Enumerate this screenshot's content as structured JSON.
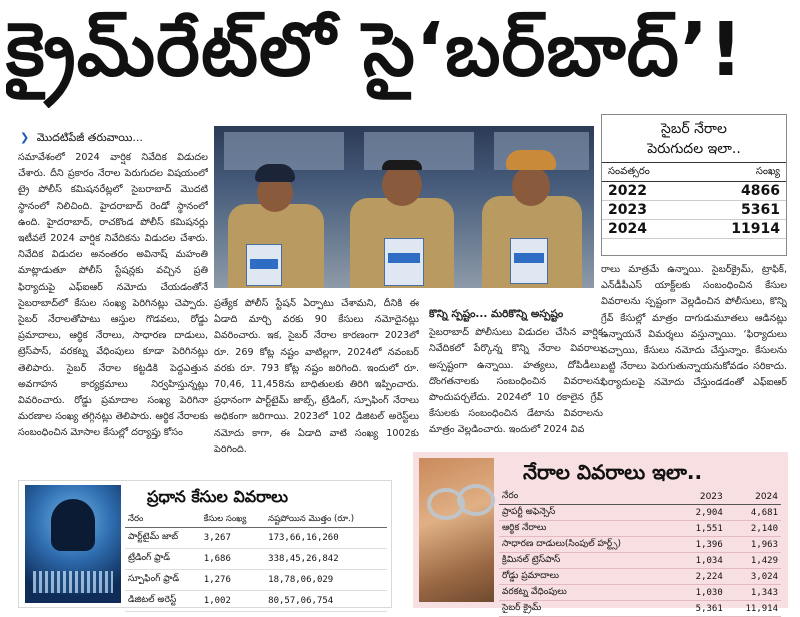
{
  "headline": "క్రైమ్‌రేట్‌లో సై‘బర్‌బాద్‌’!",
  "kicker": "మొదటిపేజీ తరువాయి...",
  "column1": "సమావేశంలో 2024 వార్షిక నివేదిక విడుదల చేశారు. దీని ప్రకారం నేరాల పెరుగుదల విషయంలో ట్రై పోలీస్ కమిషనరేట్లలో సైబరాబాద్ మొదటి స్థానంలో నిలిచింది. హైదరాబాద్ రెండో స్థానంలో ఉంది. హైదరాబాద్, రాచకొండ పోలీస్ కమిషనర్లు ఇటీవలే 2024 వార్షిక నివేదికను విడుదల చేశారు. నివేదిక విడుదల అనంతరం అవినాష్ మహంతి మాట్లాడుతూ పోలీస్ స్టేషన్లకు వచ్చిన ప్రతి ఫిర్యాదుపై ఎఫ్ఐఆర్ నమోదు చేయడంతోనే సైబరాబాద్‌లో కేసుల సంఖ్య పెరిగినట్లు చెప్పారు. సైబర్ నేరాలతోపాటు ఆస్తుల గొడవలు, రోడ్డు ప్రమాదాలు, ఆర్థిక నేరాలు, సాధారణ దాడులు, ట్రెస్‌పాస్, వరకట్న వేధింపులు కూడా పెరిగినట్లు తెలిపారు. సైబర్ నేరాల కట్టడికి పెద్దఎత్తున అవగాహన కార్యక్రమాలు నిర్వహిస్తున్నట్లు వివరించారు. రోడ్డు ప్రమాదాల సంఖ్య పెరిగినా మరణాల సంఖ్య తగ్గినట్లు తెలిపారు. ఆర్థిక నేరాలకు సంబంధించిన మోసాల కేసుల్లో దర్యాప్తు కోసం",
  "column2": "ప్రత్యేక పోలీస్ స్టేషన్ ఏర్పాటు చేశామని, దీనికి ఈ ఏడాది మార్చి వరకు 90 కేసులు నమోదైనట్లు వివరించారు. ఇక, సైబర్ నేరాల కారణంగా 2023లో రూ. 269 కోట్ల నష్టం వాటిల్లగా, 2024లో నవంబర్ వరకు రూ. 793 కోట్ల నష్టం జరిగింది. ఇందులో రూ. 70,46, 11,458ను బాధితులకు తిరిగి ఇప్పించారు. ప్రధానంగా పార్ట్‌టైమ్ జాబ్స్, ట్రేడింగ్, స్పూఫింగ్ నేరాలు అధికంగా జరిగాయి. 2023లో 102 డిజిటల్ అరెస్ట్‌లు నమోదు కాగా, ఈ ఏడాది వాటి సంఖ్య 1002కు పెరిగింది.",
  "column3": {
    "subhead": "కొన్ని స్పష్టం... మరికొన్ని అస్పష్టం",
    "text": "సైబరాబాద్ పోలీసులు విడుదల చేసిన వార్షిక నివేదికలో పేర్కొన్న కొన్ని నేరాల వివరాలు అస్పష్టంగా ఉన్నాయి. హత్యలు, దోపిడీలు, దొంగతనాలకు సంబంధించిన వివరాలను పొందుపర్చలేదు. 2024లో 10 రకాలైన గ్రేవ్ కేసులకు సంబంధించిన డేటాను వివరాలను మాత్రం వెల్లడించారు. ఇందులో 2024 వివ"
  },
  "column4": "రాలు మాత్రమే ఉన్నాయి. సైబర్‌క్రైమ్, ట్రాఫిక్, ఎన్‌డీపీఎస్ యాక్ట్‌లకు సంబంధించిన కేసుల వివరాలను స్పష్టంగా వెల్లడించిన పోలీసులు, కొన్ని గ్రేవ్ కేసుల్లో మాత్రం దాగుడుమూతలు ఆడినట్లు ఉన్నాయనే విమర్శలు వస్తున్నాయి. ‘ఫిర్యాదులు వచ్చాయి, కేసులు నమోదు చేస్తున్నాం. కేసులను బట్టి నేరాలు పెరుగుతున్నాయనుకోవడం సరికాదు. ఫిర్యాదులపై నమోదు చేస్తుండడంతో ఎఫ్ఐఆర్ సంఖ్య పెరుగుతున్నది’ అని సీపీ వివరించారు.",
  "stats_box": {
    "title_line1": "సైబర్ నేరాల",
    "title_line2": "పెరుగుదల ఇలా..",
    "col_year": "సంవత్సరం",
    "col_count": "సంఖ్య",
    "rows": [
      {
        "year": "2022",
        "count": "4866"
      },
      {
        "year": "2023",
        "count": "5361"
      },
      {
        "year": "2024",
        "count": "11914"
      }
    ]
  },
  "cases_box": {
    "title": "నేరాల వివరాలు ఇలా..",
    "col_crime": "నేరం",
    "col_2023": "2023",
    "col_2024": "2024",
    "rows": [
      {
        "crime": "ప్రాపర్టీ అఫెన్సెస్",
        "y2023": "2,904",
        "y2024": "4,681"
      },
      {
        "crime": "ఆర్థిక నేరాలు",
        "y2023": "1,551",
        "y2024": "2,140"
      },
      {
        "crime": "సాధారణ దాడులు(సింపుల్ హర్ట్స్)",
        "y2023": "1,396",
        "y2024": "1,963"
      },
      {
        "crime": "క్రిమినల్ ట్రెస్‌పాస్",
        "y2023": "1,034",
        "y2024": "1,429"
      },
      {
        "crime": "రోడ్డు ప్రమాదాలు",
        "y2023": "2,224",
        "y2024": "3,024"
      },
      {
        "crime": "వరకట్న వేధింపులు",
        "y2023": "1,030",
        "y2024": "1,343"
      },
      {
        "crime": "సైబర్ క్రైమ్",
        "y2023": "5,361",
        "y2024": "11,914"
      }
    ]
  },
  "fraud_box": {
    "title": "ప్రధాన కేసుల వివరాలు",
    "col_crime": "నేరం",
    "col_count": "కేసుల సంఖ్య",
    "col_loss": "నష్టపోయిన మొత్తం (రూ.)",
    "rows": [
      {
        "crime": "పార్ట్‌టైమ్ జాబ్",
        "count": "3,267",
        "loss": "173,66,16,260"
      },
      {
        "crime": "ట్రేడింగ్ ఫ్రాడ్",
        "count": "1,686",
        "loss": "338,45,26,842"
      },
      {
        "crime": "స్పూఫింగ్ ఫ్రాడ్",
        "count": "1,276",
        "loss": "18,78,06,029"
      },
      {
        "crime": "డిజిటల్ అరెస్ట్",
        "count": "1,002",
        "loss": "80,57,06,754"
      }
    ]
  },
  "colors": {
    "kicker_arrow": "#1a5bb8",
    "cases_box_bg": "#f7dfe2"
  },
  "icons": {
    "kicker": "chevron-right-icon"
  }
}
